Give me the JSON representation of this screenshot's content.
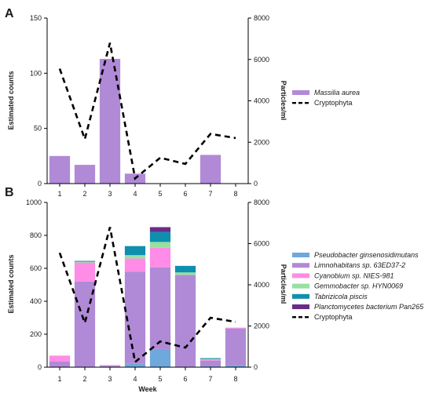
{
  "chart_data": [
    {
      "panel": "A",
      "type": "bar",
      "categories": [
        "1",
        "2",
        "3",
        "4",
        "5",
        "6",
        "7",
        "8"
      ],
      "xlabel": "",
      "ylabel": "Estimated counts",
      "y2label": "Particles/ml",
      "ylim": [
        0,
        150
      ],
      "y2lim": [
        0,
        8000
      ],
      "yticks": [
        0,
        50,
        100,
        150
      ],
      "y2ticks": [
        0,
        2000,
        4000,
        6000,
        8000
      ],
      "legend_position": "right",
      "series": [
        {
          "name": "Massilia aurea",
          "italic": true,
          "color": "#b08ad6",
          "values": [
            25,
            17,
            113,
            9,
            0,
            0,
            26,
            0
          ]
        }
      ],
      "line": {
        "name": "Cryptophyta",
        "axis": "right",
        "style": "dashed",
        "values": [
          5550,
          2150,
          6800,
          250,
          1250,
          950,
          2400,
          2200
        ]
      }
    },
    {
      "panel": "B",
      "type": "bar",
      "stacked": true,
      "categories": [
        "1",
        "2",
        "3",
        "4",
        "5",
        "6",
        "7",
        "8"
      ],
      "xlabel": "Week",
      "ylabel": "Estimated counts",
      "y2label": "Particles/ml",
      "ylim": [
        0,
        1000
      ],
      "y2lim": [
        0,
        8000
      ],
      "yticks": [
        0,
        200,
        400,
        600,
        800,
        1000
      ],
      "y2ticks": [
        0,
        2000,
        4000,
        6000,
        8000
      ],
      "legend_position": "right",
      "series": [
        {
          "name": "Pseudobacter ginsenosidimutans",
          "italic": true,
          "color": "#6fa8dc",
          "values": [
            0,
            0,
            0,
            20,
            110,
            0,
            5,
            10
          ]
        },
        {
          "name": "Limnohabitans sp. 63ED37-2",
          "italic": true,
          "color": "#b08ad6",
          "values": [
            35,
            520,
            8,
            560,
            495,
            560,
            35,
            225
          ]
        },
        {
          "name": "Cyanobium sp. NIES-981",
          "italic": true,
          "color": "#ff8ce6",
          "values": [
            35,
            115,
            5,
            80,
            120,
            0,
            5,
            5
          ]
        },
        {
          "name": "Gemmobacter sp. HYN0069",
          "italic": true,
          "color": "#98e0a0",
          "values": [
            0,
            5,
            0,
            20,
            35,
            15,
            5,
            0
          ]
        },
        {
          "name": "Tabrizicola piscis",
          "italic": true,
          "color": "#0f8fae",
          "values": [
            0,
            5,
            0,
            55,
            60,
            40,
            5,
            0
          ]
        },
        {
          "name": "Planctomycetes bacterium Pan265",
          "italic": true,
          "color": "#6a2c8a",
          "values": [
            0,
            0,
            0,
            0,
            30,
            0,
            0,
            0
          ]
        }
      ],
      "line": {
        "name": "Cryptophyta",
        "axis": "right",
        "style": "dashed",
        "values": [
          5550,
          2150,
          6800,
          250,
          1250,
          950,
          2400,
          2200
        ]
      }
    }
  ]
}
